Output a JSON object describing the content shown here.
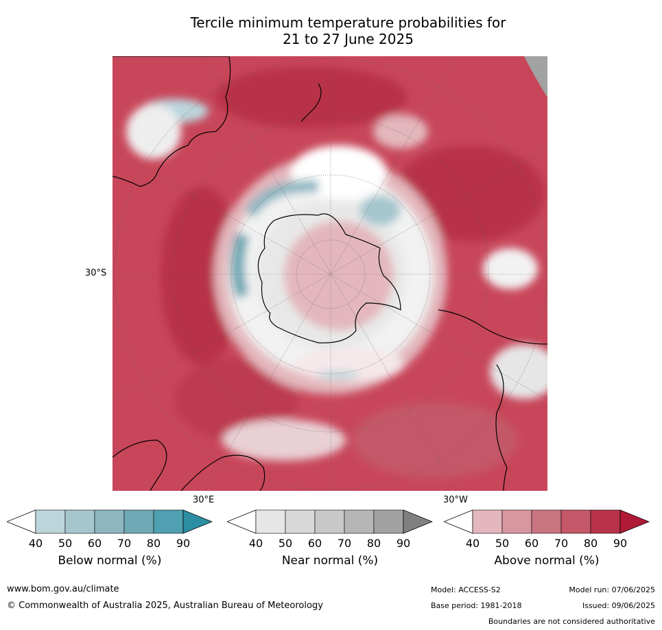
{
  "title": {
    "line1": "Tercile minimum temperature probabilities for",
    "line2": "21 to 27 June 2025"
  },
  "map": {
    "projection": "south polar",
    "lat_label": "30°S",
    "lon_labels": [
      "30°E",
      "30°W"
    ],
    "colors": {
      "above_dominant": "#c8465a",
      "land_outline": "#000000"
    }
  },
  "legend": [
    {
      "title": "Below normal (%)",
      "ticks": [
        "40",
        "50",
        "60",
        "70",
        "80",
        "90"
      ],
      "colors": [
        "#ffffff",
        "#bcd5db",
        "#a5c6cd",
        "#8db6c1",
        "#6fa9b5",
        "#4fa0b0",
        "#2c8ea3"
      ]
    },
    {
      "title": "Near normal (%)",
      "ticks": [
        "40",
        "50",
        "60",
        "70",
        "80",
        "90"
      ],
      "colors": [
        "#ffffff",
        "#e6e6e6",
        "#d8d8d8",
        "#c8c8c8",
        "#b6b6b6",
        "#a2a2a2",
        "#808080"
      ]
    },
    {
      "title": "Above normal (%)",
      "ticks": [
        "40",
        "50",
        "60",
        "70",
        "80",
        "90"
      ],
      "colors": [
        "#ffffff",
        "#e3b7bd",
        "#d8969f",
        "#ca7480",
        "#c45868",
        "#b83347",
        "#b01a36"
      ]
    }
  ],
  "footer": {
    "url": "www.bom.gov.au/climate",
    "copyright": "© Commonwealth of Australia 2025, Australian Bureau of Meteorology",
    "model": "Model: ACCESS-S2",
    "base_period": "Base period: 1981-2018",
    "model_run": "Model run: 07/06/2025",
    "issued": "Issued: 09/06/2025",
    "disclaimer": "Boundaries are not considered authoritative"
  }
}
